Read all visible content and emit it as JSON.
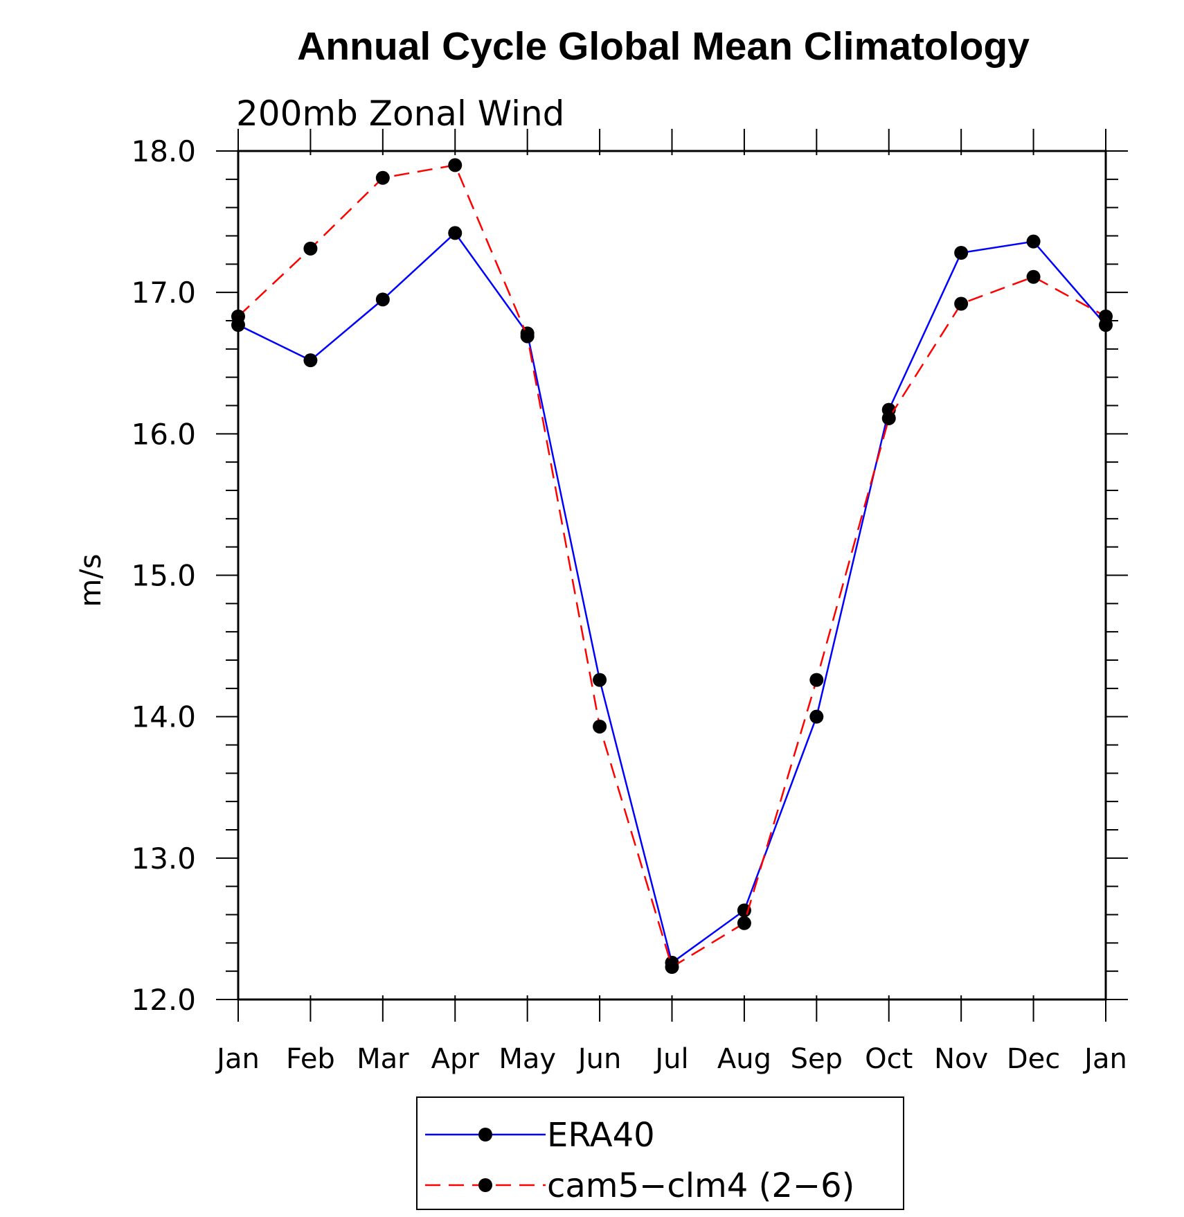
{
  "chart_data": {
    "type": "line",
    "title": "Annual Cycle Global Mean Climatology",
    "subtitle": "200mb Zonal Wind",
    "xlabel": "",
    "ylabel": "m/s",
    "categories": [
      "Jan",
      "Feb",
      "Mar",
      "Apr",
      "May",
      "Jun",
      "Jul",
      "Aug",
      "Sep",
      "Oct",
      "Nov",
      "Dec",
      "Jan"
    ],
    "yticks": [
      "12.0",
      "13.0",
      "14.0",
      "15.0",
      "16.0",
      "17.0",
      "18.0"
    ],
    "ylim": [
      12.0,
      18.0
    ],
    "grid": false,
    "legend_position": "bottom",
    "series": [
      {
        "name": "ERA40",
        "color": "#0000ff",
        "dash": "solid",
        "marker": "filled-circle",
        "values": [
          16.77,
          16.52,
          16.95,
          17.42,
          16.71,
          14.26,
          12.26,
          12.63,
          14.0,
          16.17,
          17.28,
          17.36,
          16.77
        ]
      },
      {
        "name": "cam5−clm4 (2−6)",
        "color": "#ff0000",
        "dash": "dashed",
        "marker": "filled-circle",
        "values": [
          16.83,
          17.31,
          17.81,
          17.9,
          16.69,
          13.93,
          12.23,
          12.54,
          14.26,
          16.11,
          16.92,
          17.11,
          16.83
        ]
      }
    ]
  }
}
